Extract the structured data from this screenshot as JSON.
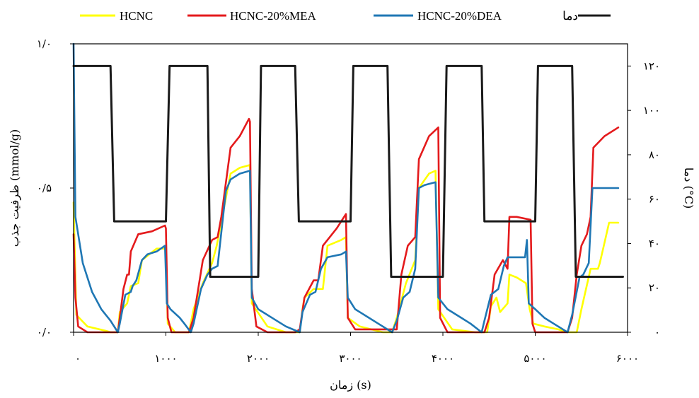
{
  "chart_data": {
    "type": "line",
    "title": "",
    "xlabel": "زمان (s)",
    "ylabel_left": "ظرفیت جذب (mmol/g)",
    "ylabel_right": "دما (°C)",
    "xlim": [
      0,
      6000
    ],
    "ylim_left": [
      0,
      1.0
    ],
    "ylim_right": [
      0,
      130
    ],
    "x_ticks": [
      0,
      1000,
      2000,
      3000,
      4000,
      5000,
      6000
    ],
    "x_tick_labels": [
      "۰",
      "۱۰۰۰",
      "۲۰۰۰",
      "۳۰۰۰",
      "۴۰۰۰",
      "۵۰۰۰",
      "۶۰۰۰"
    ],
    "y_left_ticks": [
      0,
      0.5,
      1.0
    ],
    "y_left_tick_labels": [
      "۰/۰",
      "۰/۵",
      "۱/۰"
    ],
    "y_right_ticks": [
      0,
      20,
      40,
      60,
      80,
      100,
      120
    ],
    "y_right_tick_labels": [
      "۰",
      "۲۰",
      "۴۰",
      "۶۰",
      "۸۰",
      "۱۰۰",
      "۱۲۰"
    ],
    "grid": false,
    "legend_position": "top",
    "series": [
      {
        "name": "HCNC",
        "color": "#ffff00",
        "axis": "left",
        "points": [
          [
            0,
            0.45
          ],
          [
            30,
            0.06
          ],
          [
            150,
            0.02
          ],
          [
            350,
            0.005
          ],
          [
            400,
            0
          ],
          [
            480,
            0
          ],
          [
            500,
            0.07
          ],
          [
            580,
            0.1
          ],
          [
            620,
            0.16
          ],
          [
            700,
            0.17
          ],
          [
            740,
            0.25
          ],
          [
            900,
            0.29
          ],
          [
            1000,
            0.29
          ],
          [
            1020,
            0.03
          ],
          [
            1100,
            0
          ],
          [
            1250,
            0
          ],
          [
            1300,
            0.08
          ],
          [
            1400,
            0.17
          ],
          [
            1500,
            0.24
          ],
          [
            1550,
            0.3
          ],
          [
            1700,
            0.55
          ],
          [
            1800,
            0.57
          ],
          [
            1910,
            0.58
          ],
          [
            1930,
            0.1
          ],
          [
            2100,
            0.02
          ],
          [
            2300,
            0
          ],
          [
            2450,
            0
          ],
          [
            2480,
            0.08
          ],
          [
            2500,
            0.12
          ],
          [
            2600,
            0.15
          ],
          [
            2700,
            0.15
          ],
          [
            2750,
            0.3
          ],
          [
            2900,
            0.32
          ],
          [
            2950,
            0.33
          ],
          [
            2970,
            0.05
          ],
          [
            3100,
            0.02
          ],
          [
            3350,
            0
          ],
          [
            3450,
            0
          ],
          [
            3500,
            0.05
          ],
          [
            3600,
            0.17
          ],
          [
            3700,
            0.25
          ],
          [
            3740,
            0.5
          ],
          [
            3850,
            0.55
          ],
          [
            3920,
            0.56
          ],
          [
            3950,
            0.08
          ],
          [
            4100,
            0.01
          ],
          [
            4350,
            0
          ],
          [
            4480,
            0
          ],
          [
            4520,
            0.09
          ],
          [
            4580,
            0.12
          ],
          [
            4620,
            0.07
          ],
          [
            4700,
            0.1
          ],
          [
            4720,
            0.2
          ],
          [
            4800,
            0.19
          ],
          [
            4900,
            0.17
          ],
          [
            4940,
            0.08
          ],
          [
            4980,
            0.03
          ],
          [
            5100,
            0.02
          ],
          [
            5250,
            0.01
          ],
          [
            5350,
            0
          ],
          [
            5450,
            0
          ],
          [
            5500,
            0.08
          ],
          [
            5600,
            0.22
          ],
          [
            5680,
            0.22
          ],
          [
            5700,
            0.24
          ],
          [
            5750,
            0.31
          ],
          [
            5800,
            0.38
          ],
          [
            5900,
            0.38
          ]
        ]
      },
      {
        "name": "HCNC-20%MEA",
        "color": "#e41a1c",
        "axis": "left",
        "points": [
          [
            0,
            0.34
          ],
          [
            20,
            0.12
          ],
          [
            50,
            0.02
          ],
          [
            150,
            0
          ],
          [
            480,
            0
          ],
          [
            500,
            0.05
          ],
          [
            540,
            0.15
          ],
          [
            580,
            0.2
          ],
          [
            600,
            0.2
          ],
          [
            620,
            0.28
          ],
          [
            700,
            0.34
          ],
          [
            850,
            0.35
          ],
          [
            990,
            0.37
          ],
          [
            1000,
            0.36
          ],
          [
            1020,
            0.05
          ],
          [
            1060,
            0
          ],
          [
            1250,
            0
          ],
          [
            1300,
            0.05
          ],
          [
            1400,
            0.25
          ],
          [
            1500,
            0.32
          ],
          [
            1560,
            0.33
          ],
          [
            1600,
            0.4
          ],
          [
            1700,
            0.64
          ],
          [
            1800,
            0.68
          ],
          [
            1900,
            0.74
          ],
          [
            1910,
            0.73
          ],
          [
            1930,
            0.15
          ],
          [
            1980,
            0.02
          ],
          [
            2100,
            0
          ],
          [
            2400,
            0
          ],
          [
            2450,
            0.01
          ],
          [
            2500,
            0.12
          ],
          [
            2600,
            0.18
          ],
          [
            2650,
            0.18
          ],
          [
            2700,
            0.3
          ],
          [
            2850,
            0.36
          ],
          [
            2950,
            0.41
          ],
          [
            2970,
            0.05
          ],
          [
            3050,
            0.01
          ],
          [
            3300,
            0.01
          ],
          [
            3500,
            0.01
          ],
          [
            3550,
            0.2
          ],
          [
            3620,
            0.3
          ],
          [
            3700,
            0.33
          ],
          [
            3740,
            0.6
          ],
          [
            3850,
            0.68
          ],
          [
            3950,
            0.71
          ],
          [
            3970,
            0.05
          ],
          [
            4050,
            0
          ],
          [
            4450,
            0
          ],
          [
            4500,
            0.05
          ],
          [
            4560,
            0.2
          ],
          [
            4650,
            0.25
          ],
          [
            4700,
            0.22
          ],
          [
            4720,
            0.4
          ],
          [
            4800,
            0.4
          ],
          [
            4950,
            0.39
          ],
          [
            4970,
            0.03
          ],
          [
            5000,
            0
          ],
          [
            5350,
            0
          ],
          [
            5400,
            0.05
          ],
          [
            5450,
            0.2
          ],
          [
            5500,
            0.3
          ],
          [
            5560,
            0.34
          ],
          [
            5600,
            0.4
          ],
          [
            5630,
            0.64
          ],
          [
            5750,
            0.68
          ],
          [
            5900,
            0.71
          ]
        ]
      },
      {
        "name": "HCNC-20%DEA",
        "color": "#1f77b4",
        "axis": "left",
        "points": [
          [
            0,
            1.0
          ],
          [
            20,
            0.4
          ],
          [
            100,
            0.24
          ],
          [
            200,
            0.14
          ],
          [
            300,
            0.08
          ],
          [
            400,
            0.04
          ],
          [
            480,
            0
          ],
          [
            500,
            0.03
          ],
          [
            560,
            0.13
          ],
          [
            620,
            0.14
          ],
          [
            640,
            0.16
          ],
          [
            680,
            0.18
          ],
          [
            740,
            0.25
          ],
          [
            800,
            0.27
          ],
          [
            900,
            0.28
          ],
          [
            990,
            0.3
          ],
          [
            1010,
            0.1
          ],
          [
            1050,
            0.08
          ],
          [
            1150,
            0.05
          ],
          [
            1200,
            0.03
          ],
          [
            1270,
            0
          ],
          [
            1300,
            0.03
          ],
          [
            1380,
            0.15
          ],
          [
            1450,
            0.2
          ],
          [
            1500,
            0.22
          ],
          [
            1560,
            0.23
          ],
          [
            1650,
            0.49
          ],
          [
            1700,
            0.53
          ],
          [
            1800,
            0.55
          ],
          [
            1910,
            0.56
          ],
          [
            1930,
            0.12
          ],
          [
            2000,
            0.08
          ],
          [
            2200,
            0.04
          ],
          [
            2300,
            0.02
          ],
          [
            2450,
            0
          ],
          [
            2480,
            0.07
          ],
          [
            2560,
            0.13
          ],
          [
            2620,
            0.14
          ],
          [
            2680,
            0.22
          ],
          [
            2750,
            0.26
          ],
          [
            2900,
            0.27
          ],
          [
            2950,
            0.28
          ],
          [
            2970,
            0.12
          ],
          [
            3050,
            0.08
          ],
          [
            3200,
            0.05
          ],
          [
            3300,
            0.03
          ],
          [
            3450,
            0
          ],
          [
            3500,
            0.04
          ],
          [
            3570,
            0.12
          ],
          [
            3640,
            0.14
          ],
          [
            3700,
            0.22
          ],
          [
            3740,
            0.5
          ],
          [
            3800,
            0.51
          ],
          [
            3920,
            0.52
          ],
          [
            3950,
            0.12
          ],
          [
            4050,
            0.08
          ],
          [
            4200,
            0.05
          ],
          [
            4300,
            0.03
          ],
          [
            4420,
            0
          ],
          [
            4450,
            0.04
          ],
          [
            4520,
            0.13
          ],
          [
            4600,
            0.15
          ],
          [
            4660,
            0.23
          ],
          [
            4700,
            0.26
          ],
          [
            4800,
            0.26
          ],
          [
            4890,
            0.26
          ],
          [
            4910,
            0.32
          ],
          [
            4930,
            0.1
          ],
          [
            5000,
            0.08
          ],
          [
            5100,
            0.05
          ],
          [
            5200,
            0.03
          ],
          [
            5350,
            0
          ],
          [
            5400,
            0.06
          ],
          [
            5480,
            0.19
          ],
          [
            5520,
            0.2
          ],
          [
            5580,
            0.24
          ],
          [
            5620,
            0.5
          ],
          [
            5700,
            0.5
          ],
          [
            5900,
            0.5
          ]
        ]
      },
      {
        "name": "دما",
        "color": "#1a1a1a",
        "axis": "right",
        "points": [
          [
            0,
            120
          ],
          [
            400,
            120
          ],
          [
            440,
            50
          ],
          [
            1000,
            50
          ],
          [
            1040,
            120
          ],
          [
            1450,
            120
          ],
          [
            1480,
            25
          ],
          [
            2000,
            25
          ],
          [
            2030,
            120
          ],
          [
            2400,
            120
          ],
          [
            2440,
            50
          ],
          [
            3000,
            50
          ],
          [
            3030,
            120
          ],
          [
            3400,
            120
          ],
          [
            3440,
            25
          ],
          [
            4000,
            25
          ],
          [
            4040,
            120
          ],
          [
            4420,
            120
          ],
          [
            4450,
            50
          ],
          [
            5000,
            50
          ],
          [
            5030,
            120
          ],
          [
            5400,
            120
          ],
          [
            5440,
            25
          ],
          [
            5950,
            25
          ]
        ]
      }
    ]
  }
}
